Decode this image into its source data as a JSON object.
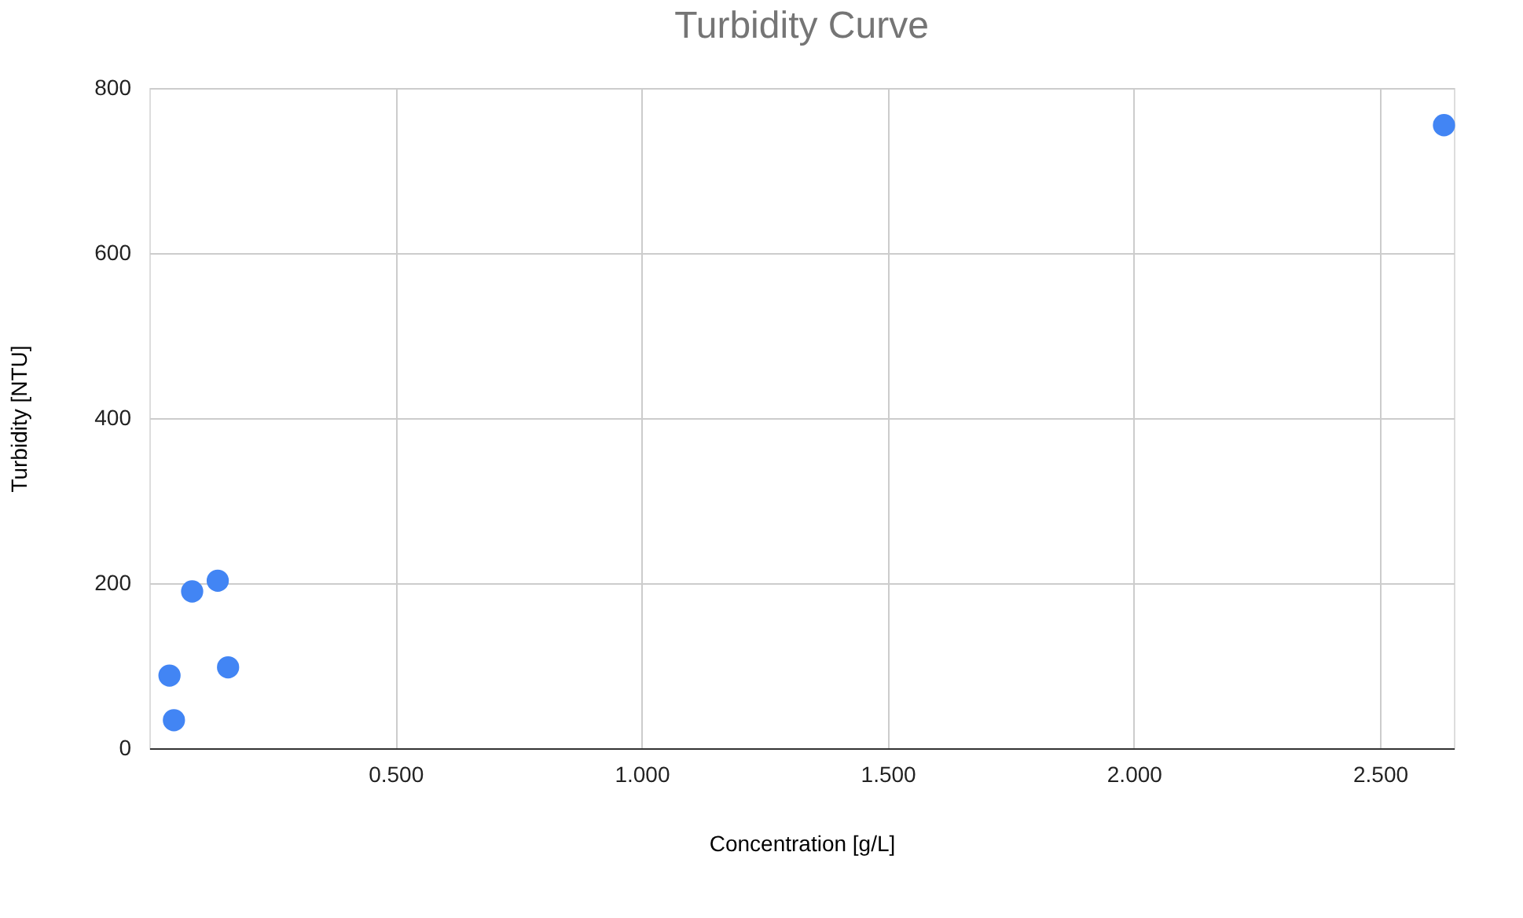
{
  "chart_data": {
    "type": "scatter",
    "title": "Turbidity Curve",
    "xlabel": "Concentration [g/L]",
    "ylabel": "Turbidity [NTU]",
    "x": [
      0.041,
      0.05,
      0.087,
      0.139,
      0.16,
      2.63
    ],
    "series": [
      {
        "color": "#4285f4",
        "values": [
          88,
          34,
          190,
          203,
          98,
          755
        ]
      }
    ],
    "xlim": [
      0,
      2.65
    ],
    "xticks": [
      {
        "value": 0.5,
        "label": "0.500"
      },
      {
        "value": 1.0,
        "label": "1.000"
      },
      {
        "value": 1.5,
        "label": "1.500"
      },
      {
        "value": 2.0,
        "label": "2.000"
      },
      {
        "value": 2.5,
        "label": "2.500"
      }
    ],
    "ylim": [
      0,
      800
    ],
    "yticks": [
      0,
      200,
      400,
      600,
      800
    ],
    "grid": true,
    "marker": "circle",
    "legend": false
  }
}
